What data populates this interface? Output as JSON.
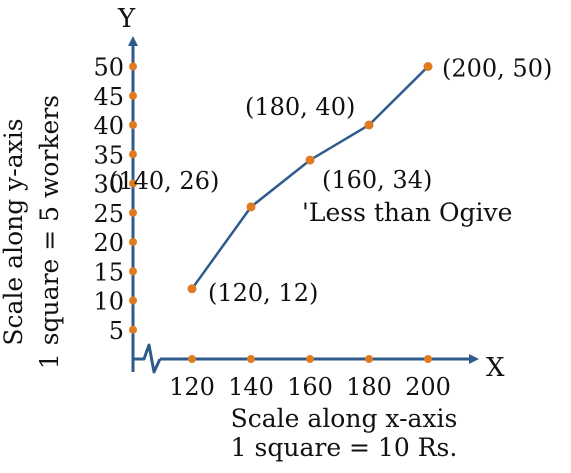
{
  "colors": {
    "axis": "#2f5b8c",
    "line": "#2f5b8c",
    "marker": "#e07b1f",
    "text": "#111111"
  },
  "chart_data": {
    "type": "line",
    "title": "",
    "series": [
      {
        "name": "'Less than Ogive",
        "points": [
          {
            "x": 120,
            "y": 12,
            "label": "(120, 12)"
          },
          {
            "x": 140,
            "y": 26,
            "label": "(140, 26)"
          },
          {
            "x": 160,
            "y": 34,
            "label": "(160, 34)"
          },
          {
            "x": 180,
            "y": 40,
            "label": "(180, 40)"
          },
          {
            "x": 200,
            "y": 50,
            "label": "(200, 50)"
          }
        ]
      }
    ],
    "x_axis": {
      "letter": "X",
      "label_line1": "Scale along x-axis",
      "label_line2": "1 square = 10 Rs.",
      "ticks": [
        120,
        140,
        160,
        180,
        200
      ],
      "range": [
        100,
        200
      ]
    },
    "y_axis": {
      "letter": "Y",
      "label_line1": "Scale along y-axis",
      "label_line2": "1 square = 5 workers",
      "ticks": [
        5,
        10,
        15,
        20,
        25,
        30,
        35,
        40,
        45,
        50
      ],
      "range": [
        0,
        50
      ]
    },
    "axis_break": true,
    "grid": false,
    "legend": "none"
  }
}
